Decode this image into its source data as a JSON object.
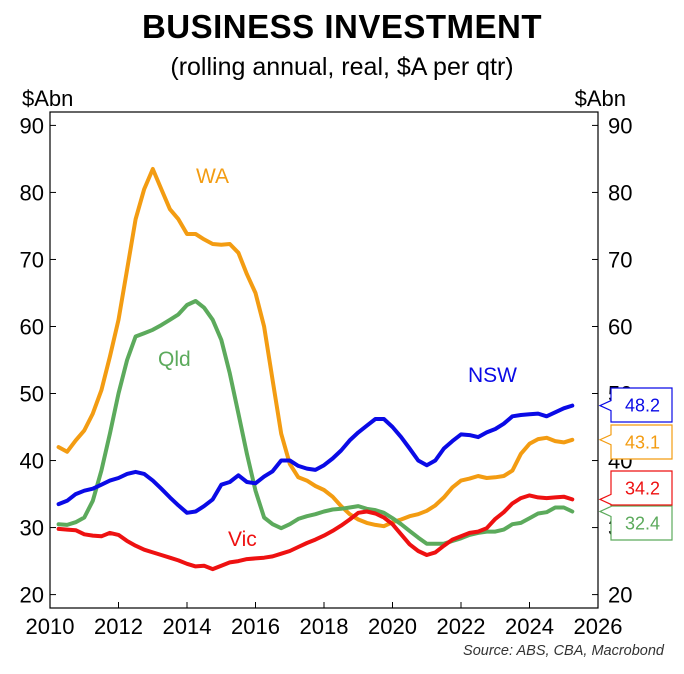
{
  "chart_data": {
    "type": "line",
    "title": "BUSINESS INVESTMENT",
    "subtitle": "(rolling annual, real, $A per qtr)",
    "ylabel_left": "$Abn",
    "ylabel_right": "$Abn",
    "xlim": [
      2010,
      2026
    ],
    "ylim": [
      18,
      92
    ],
    "xticks": [
      2010,
      2012,
      2014,
      2016,
      2018,
      2020,
      2022,
      2024,
      2026
    ],
    "yticks": [
      20,
      30,
      40,
      50,
      60,
      70,
      80,
      90
    ],
    "source": "Source: ABS, CBA, Macrobond",
    "series": [
      {
        "name": "WA",
        "color": "#f39c12",
        "end_label": "43.1",
        "x": [
          2010.25,
          2010.5,
          2010.75,
          2011,
          2011.25,
          2011.5,
          2011.75,
          2012,
          2012.25,
          2012.5,
          2012.75,
          2013,
          2013.25,
          2013.5,
          2013.75,
          2014,
          2014.25,
          2014.5,
          2014.75,
          2015,
          2015.25,
          2015.5,
          2015.75,
          2016,
          2016.25,
          2016.5,
          2016.75,
          2017,
          2017.25,
          2017.5,
          2017.75,
          2018,
          2018.25,
          2018.5,
          2018.75,
          2019,
          2019.25,
          2019.5,
          2019.75,
          2020,
          2020.25,
          2020.5,
          2020.75,
          2021,
          2021.25,
          2021.5,
          2021.75,
          2022,
          2022.25,
          2022.5,
          2022.75,
          2023,
          2023.25,
          2023.5,
          2023.75,
          2024,
          2024.25,
          2024.5,
          2024.75,
          2025,
          2025.25
        ],
        "values": [
          42,
          41.3,
          43,
          44.5,
          47,
          50.5,
          55.5,
          61,
          68.5,
          76,
          80.5,
          83.5,
          80.5,
          77.5,
          76,
          73.8,
          73.8,
          73,
          72.3,
          72.2,
          72.3,
          71,
          67.8,
          65,
          60,
          52,
          44,
          39.5,
          37.5,
          37,
          36.2,
          35.6,
          34.6,
          33.2,
          32,
          31.2,
          30.7,
          30.4,
          30.2,
          30.8,
          31.2,
          31.7,
          32,
          32.5,
          33.3,
          34.5,
          36,
          37,
          37.3,
          37.7,
          37.4,
          37.5,
          37.7,
          38.5,
          41,
          42.5,
          43.2,
          43.4,
          42.9,
          42.7,
          43.1
        ]
      },
      {
        "name": "Qld",
        "color": "#5caa5c",
        "end_label": "32.4",
        "x": [
          2010.25,
          2010.5,
          2010.75,
          2011,
          2011.25,
          2011.5,
          2011.75,
          2012,
          2012.25,
          2012.5,
          2012.75,
          2013,
          2013.25,
          2013.5,
          2013.75,
          2014,
          2014.25,
          2014.5,
          2014.75,
          2015,
          2015.25,
          2015.5,
          2015.75,
          2016,
          2016.25,
          2016.5,
          2016.75,
          2017,
          2017.25,
          2017.5,
          2017.75,
          2018,
          2018.25,
          2018.5,
          2018.75,
          2019,
          2019.25,
          2019.5,
          2019.75,
          2020,
          2020.25,
          2020.5,
          2020.75,
          2021,
          2021.25,
          2021.5,
          2021.75,
          2022,
          2022.25,
          2022.5,
          2022.75,
          2023,
          2023.25,
          2023.5,
          2023.75,
          2024,
          2024.25,
          2024.5,
          2024.75,
          2025,
          2025.25
        ],
        "values": [
          30.5,
          30.4,
          30.8,
          31.5,
          34,
          38.5,
          44,
          50,
          55,
          58.5,
          59,
          59.5,
          60.2,
          61,
          61.8,
          63.2,
          63.8,
          62.8,
          61,
          58,
          53,
          47,
          41,
          35.5,
          31.5,
          30.5,
          29.9,
          30.5,
          31.3,
          31.7,
          32,
          32.4,
          32.7,
          32.8,
          33,
          33.2,
          32.8,
          32.6,
          32.2,
          31.4,
          30.5,
          29.5,
          28.5,
          27.6,
          27.6,
          27.6,
          28,
          28.4,
          28.9,
          29.2,
          29.4,
          29.4,
          29.7,
          30.5,
          30.7,
          31.4,
          32.1,
          32.3,
          33,
          33,
          32.4
        ]
      },
      {
        "name": "NSW",
        "color": "#0a0ae6",
        "end_label": "48.2",
        "x": [
          2010.25,
          2010.5,
          2010.75,
          2011,
          2011.25,
          2011.5,
          2011.75,
          2012,
          2012.25,
          2012.5,
          2012.75,
          2013,
          2013.25,
          2013.5,
          2013.75,
          2014,
          2014.25,
          2014.5,
          2014.75,
          2015,
          2015.25,
          2015.5,
          2015.75,
          2016,
          2016.25,
          2016.5,
          2016.75,
          2017,
          2017.25,
          2017.5,
          2017.75,
          2018,
          2018.25,
          2018.5,
          2018.75,
          2019,
          2019.25,
          2019.5,
          2019.75,
          2020,
          2020.25,
          2020.5,
          2020.75,
          2021,
          2021.25,
          2021.5,
          2021.75,
          2022,
          2022.25,
          2022.5,
          2022.75,
          2023,
          2023.25,
          2023.5,
          2023.75,
          2024,
          2024.25,
          2024.5,
          2024.75,
          2025,
          2025.25
        ],
        "values": [
          33.5,
          34,
          35,
          35.5,
          35.8,
          36.4,
          37,
          37.4,
          38,
          38.3,
          38,
          37,
          35.8,
          34.5,
          33.3,
          32.2,
          32.4,
          33.2,
          34.2,
          36.4,
          36.8,
          37.8,
          36.8,
          36.6,
          37.6,
          38.4,
          40,
          40,
          39.2,
          38.8,
          38.6,
          39.3,
          40.3,
          41.5,
          43,
          44.2,
          45.2,
          46.2,
          46.2,
          45,
          43.5,
          41.8,
          40,
          39.3,
          40,
          41.8,
          42.9,
          43.9,
          43.8,
          43.5,
          44.2,
          44.7,
          45.5,
          46.6,
          46.8,
          46.9,
          47,
          46.6,
          47.2,
          47.8,
          48.2
        ]
      },
      {
        "name": "Vic",
        "color": "#ee1111",
        "end_label": "34.2",
        "x": [
          2010.25,
          2010.5,
          2010.75,
          2011,
          2011.25,
          2011.5,
          2011.75,
          2012,
          2012.25,
          2012.5,
          2012.75,
          2013,
          2013.25,
          2013.5,
          2013.75,
          2014,
          2014.25,
          2014.5,
          2014.75,
          2015,
          2015.25,
          2015.5,
          2015.75,
          2016,
          2016.25,
          2016.5,
          2016.75,
          2017,
          2017.25,
          2017.5,
          2017.75,
          2018,
          2018.25,
          2018.5,
          2018.75,
          2019,
          2019.25,
          2019.5,
          2019.75,
          2020,
          2020.25,
          2020.5,
          2020.75,
          2021,
          2021.25,
          2021.5,
          2021.75,
          2022,
          2022.25,
          2022.5,
          2022.75,
          2023,
          2023.25,
          2023.5,
          2023.75,
          2024,
          2024.25,
          2024.5,
          2024.75,
          2025,
          2025.25
        ],
        "values": [
          29.8,
          29.7,
          29.6,
          29,
          28.8,
          28.7,
          29.2,
          28.9,
          28,
          27.3,
          26.7,
          26.3,
          25.9,
          25.5,
          25.1,
          24.6,
          24.2,
          24.3,
          23.8,
          24.3,
          24.8,
          25,
          25.3,
          25.4,
          25.5,
          25.7,
          26.1,
          26.5,
          27.1,
          27.7,
          28.2,
          28.8,
          29.5,
          30.3,
          31.2,
          32.2,
          32.4,
          32.1,
          31.5,
          30.5,
          29,
          27.5,
          26.5,
          25.9,
          26.3,
          27.3,
          28.2,
          28.7,
          29.2,
          29.4,
          29.9,
          31.3,
          32.3,
          33.6,
          34.4,
          34.8,
          34.5,
          34.4,
          34.5,
          34.6,
          34.2
        ]
      }
    ],
    "annotations": [
      {
        "text": "WA",
        "series": "WA"
      },
      {
        "text": "Qld",
        "series": "Qld"
      },
      {
        "text": "NSW",
        "series": "NSW"
      },
      {
        "text": "Vic",
        "series": "Vic"
      }
    ]
  }
}
